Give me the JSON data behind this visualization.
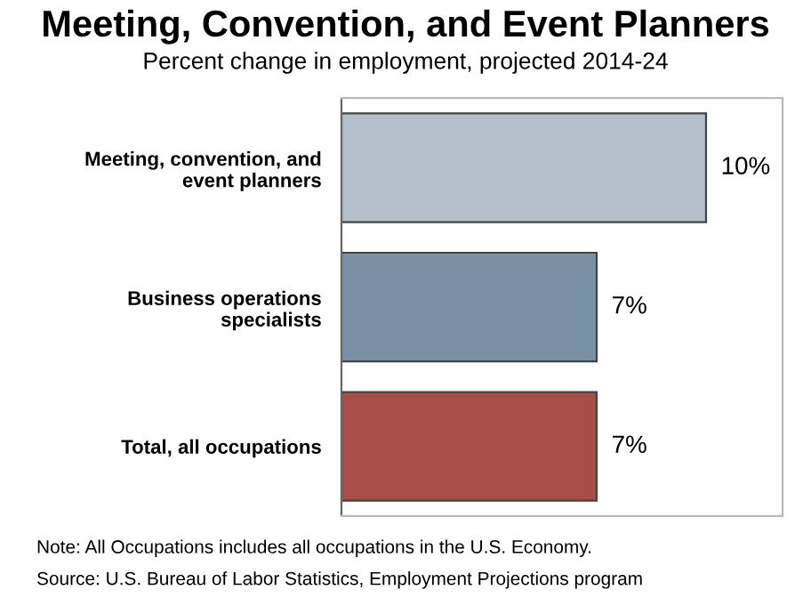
{
  "chart_data": {
    "type": "bar",
    "orientation": "horizontal",
    "title": "Meeting, Convention, and Event Planners",
    "subtitle": "Percent change in employment, projected 2014-24",
    "categories": [
      "Meeting, convention, and\nevent planners",
      "Business operations\nspecialists",
      "Total, all occupations"
    ],
    "values": [
      10,
      7,
      7
    ],
    "colors": [
      "#b3c0cb",
      "#7a91a4",
      "#a84e48"
    ],
    "value_labels": [
      "10%",
      "7%",
      "7%"
    ],
    "tick_labels": "y",
    "grid": false,
    "legend": false,
    "annotations": [
      "Note: All Occupations includes all occupations in the U.S. Economy.",
      "Source: U.S. Bureau of Labor Statistics, Employment Projections program"
    ]
  }
}
